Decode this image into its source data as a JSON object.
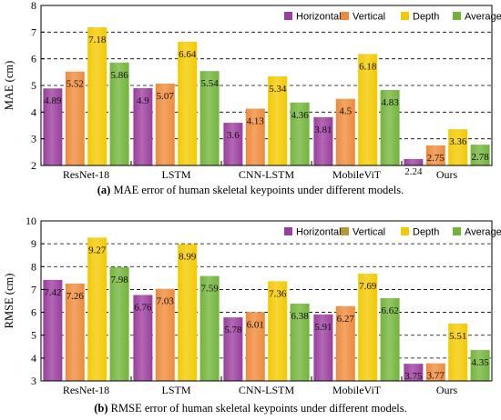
{
  "colors": {
    "Horizontal": "#9b3d9e",
    "Vertical": "#ee8a3a",
    "Depth": "#f3c900",
    "Average": "#72b43a",
    "legend_Vertical_b": "#b8963a"
  },
  "captions": {
    "a_prefix": "(a)",
    "a_text": " MAE error of human skeletal keypoints under different models.",
    "b_prefix": "(b)",
    "b_text": " RMSE error of human skeletal keypoints under different models."
  },
  "chart_data": [
    {
      "type": "bar",
      "ylabel": "MAE (cm)",
      "ylim": [
        2,
        8
      ],
      "yticks": [
        2,
        3,
        4,
        5,
        6,
        7,
        8
      ],
      "grid": "dashed horizontal",
      "legend_position": "top-right",
      "categories": [
        "ResNet-18",
        "LSTM",
        "CNN-LSTM",
        "MobileViT",
        "Ours"
      ],
      "series": [
        {
          "name": "Horizontal",
          "values": [
            4.89,
            4.9,
            3.6,
            3.81,
            2.24
          ]
        },
        {
          "name": "Vertical",
          "values": [
            5.52,
            5.07,
            4.13,
            4.5,
            2.75
          ]
        },
        {
          "name": "Depth",
          "values": [
            7.18,
            6.64,
            5.34,
            6.18,
            3.36
          ]
        },
        {
          "name": "Average",
          "values": [
            5.86,
            5.54,
            4.36,
            4.83,
            2.78
          ]
        }
      ]
    },
    {
      "type": "bar",
      "ylabel": "RMSE (cm)",
      "ylim": [
        3,
        10
      ],
      "yticks": [
        3,
        4,
        5,
        6,
        7,
        8,
        9,
        10
      ],
      "grid": "dashed horizontal",
      "legend_position": "top-right",
      "categories": [
        "ResNet-18",
        "LSTM",
        "CNN-LSTM",
        "MobileViT",
        "Ours"
      ],
      "series": [
        {
          "name": "Horizontal",
          "values": [
            7.42,
            6.76,
            5.78,
            5.91,
            3.75
          ]
        },
        {
          "name": "Vertical",
          "values": [
            7.26,
            7.03,
            6.01,
            6.27,
            3.77
          ]
        },
        {
          "name": "Depth",
          "values": [
            9.27,
            8.99,
            7.36,
            7.69,
            5.51
          ]
        },
        {
          "name": "Average",
          "values": [
            7.98,
            7.59,
            6.38,
            6.62,
            4.35
          ]
        }
      ]
    }
  ]
}
